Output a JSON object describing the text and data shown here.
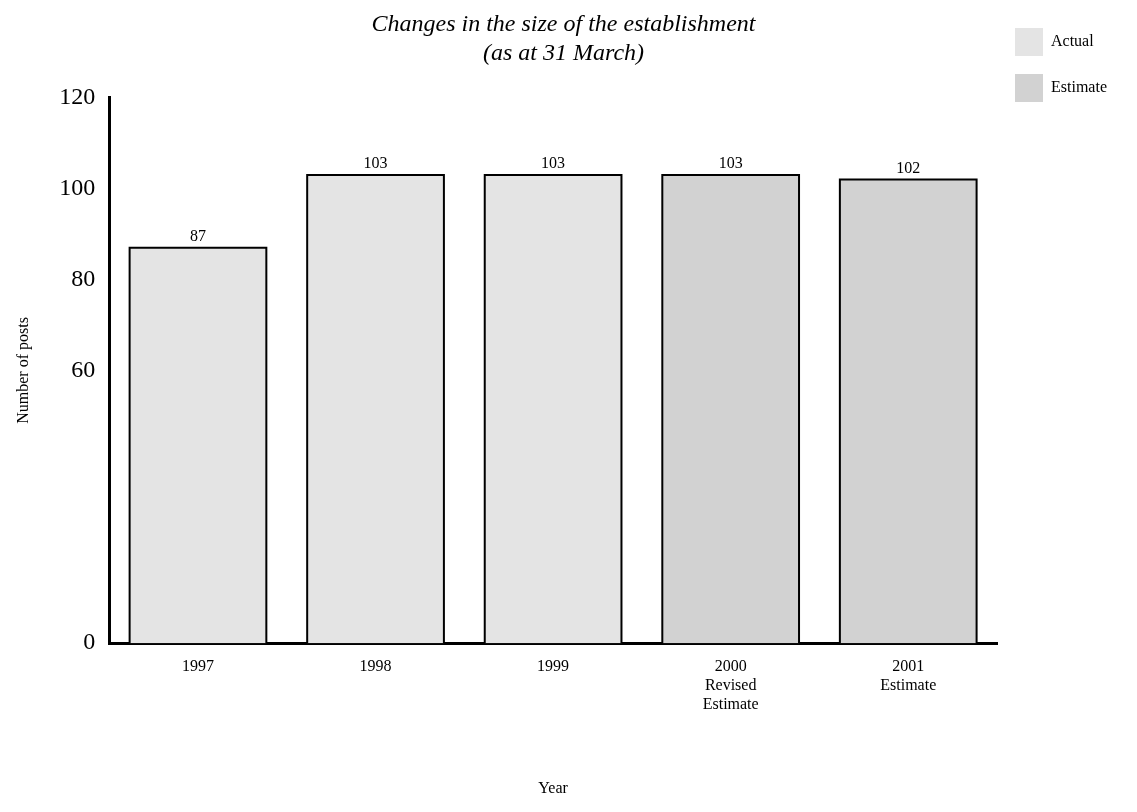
{
  "chart_data": {
    "type": "bar",
    "title": "Changes in the size of the establishment",
    "subtitle": "(as at 31 March)",
    "xlabel": "Year",
    "ylabel": "Number of posts",
    "categories": [
      "1997",
      "1998",
      "1999",
      "2000\nRevised\nEstimate",
      "2001\nEstimate"
    ],
    "series": [
      {
        "name": "Actual",
        "color": "#e4e4e4",
        "values": [
          87,
          103,
          103,
          null,
          null
        ]
      },
      {
        "name": "Estimate",
        "color": "#d2d2d2",
        "values": [
          null,
          null,
          null,
          103,
          102
        ]
      }
    ],
    "ylim": [
      0,
      120
    ],
    "yticks": [
      0,
      60,
      80,
      100,
      120
    ],
    "data_labels": true,
    "grid": false,
    "legend": "top right"
  }
}
